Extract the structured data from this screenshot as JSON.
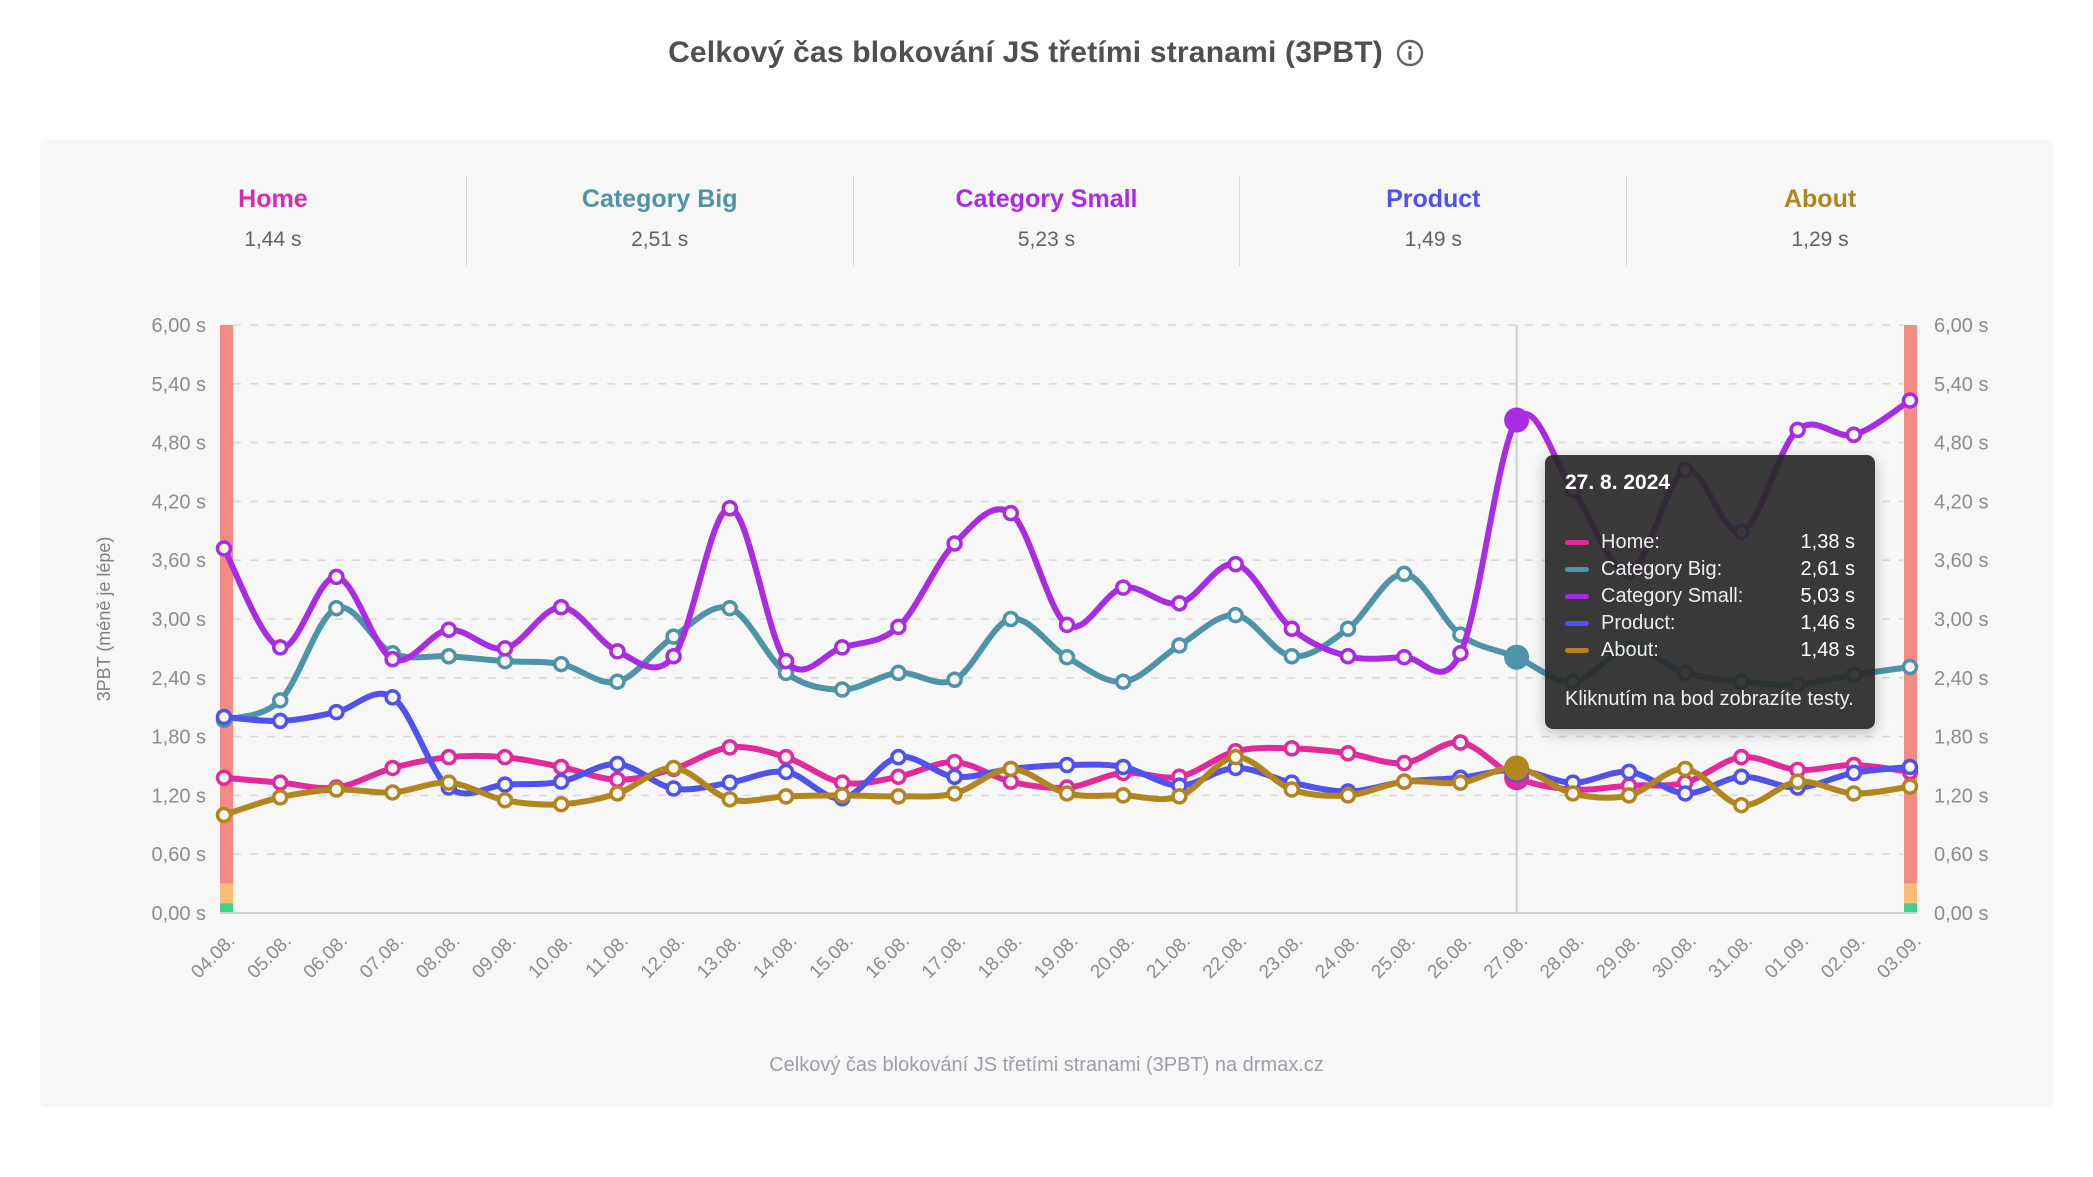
{
  "page": {
    "title": "Celkový čas blokování JS třetími stranami (3PBT)",
    "footer": "Celkový čas blokování JS třetími stranami (3PBT) na drmax.cz"
  },
  "tabs": [
    {
      "label": "Home",
      "value": "1,44 s",
      "color": "#d92bb0"
    },
    {
      "label": "Category Big",
      "value": "2,51 s",
      "color": "#4e93a7"
    },
    {
      "label": "Category Small",
      "value": "5,23 s",
      "color": "#a92ce2"
    },
    {
      "label": "Product",
      "value": "1,49 s",
      "color": "#4f52ec"
    },
    {
      "label": "About",
      "value": "1,29 s",
      "color": "#b1861f"
    }
  ],
  "tooltip": {
    "title": "27. 8. 2024",
    "rows": [
      {
        "label": "Home:",
        "value": "1,38 s",
        "color": "#e12a9c"
      },
      {
        "label": "Category Big:",
        "value": "2,61 s",
        "color": "#4e93a7"
      },
      {
        "label": "Category Small:",
        "value": "5,03 s",
        "color": "#a92ce2"
      },
      {
        "label": "Product:",
        "value": "1,46 s",
        "color": "#4f52ec"
      },
      {
        "label": "About:",
        "value": "1,48 s",
        "color": "#b1861f"
      }
    ],
    "note": "Kliknutím na bod zobrazíte testy."
  },
  "chart_data": {
    "type": "line",
    "title": "Celkový čas blokování JS třetími stranami (3PBT)",
    "ylabel": "3PBT (méně je lépe)",
    "ylim": [
      0,
      6
    ],
    "ytick_labels": [
      "0,00 s",
      "0,60 s",
      "1,20 s",
      "1,80 s",
      "2,40 s",
      "3,00 s",
      "3,60 s",
      "4,20 s",
      "4,80 s",
      "5,40 s",
      "6,00 s"
    ],
    "grid": "dashed horizontal",
    "legend_position": "top tabs",
    "highlight_index": 23,
    "highlight_date": "27. 8. 2024",
    "categories": [
      "04.08.",
      "05.08.",
      "06.08.",
      "07.08.",
      "08.08.",
      "09.08.",
      "10.08.",
      "11.08.",
      "12.08.",
      "13.08.",
      "14.08.",
      "15.08.",
      "16.08.",
      "17.08.",
      "18.08.",
      "19.08.",
      "20.08.",
      "21.08.",
      "22.08.",
      "23.08.",
      "24.08.",
      "25.08.",
      "26.08.",
      "27.08.",
      "28.08.",
      "29.08.",
      "30.08.",
      "31.08.",
      "01.09.",
      "02.09.",
      "03.09."
    ],
    "series": [
      {
        "name": "Home",
        "color": "#e12a9c",
        "values": [
          1.38,
          1.33,
          1.28,
          1.48,
          1.59,
          1.59,
          1.49,
          1.36,
          1.47,
          1.69,
          1.59,
          1.33,
          1.39,
          1.54,
          1.34,
          1.28,
          1.43,
          1.39,
          1.65,
          1.68,
          1.63,
          1.53,
          1.74,
          1.38,
          1.26,
          1.3,
          1.33,
          1.59,
          1.46,
          1.51,
          1.44
        ]
      },
      {
        "name": "Category Big",
        "color": "#4e93a7",
        "values": [
          1.97,
          2.17,
          3.11,
          2.65,
          2.62,
          2.57,
          2.54,
          2.36,
          2.82,
          3.11,
          2.45,
          2.28,
          2.45,
          2.38,
          3.0,
          2.61,
          2.36,
          2.73,
          3.04,
          2.62,
          2.9,
          3.46,
          2.84,
          2.61,
          2.36,
          2.7,
          2.45,
          2.36,
          2.33,
          2.43,
          2.51
        ]
      },
      {
        "name": "Category Small",
        "color": "#a92ce2",
        "values": [
          3.72,
          2.71,
          3.43,
          2.59,
          2.89,
          2.7,
          3.12,
          2.67,
          2.62,
          4.13,
          2.57,
          2.71,
          2.92,
          3.77,
          4.08,
          2.94,
          3.32,
          3.16,
          3.56,
          2.9,
          2.62,
          2.61,
          2.65,
          5.03,
          4.32,
          3.48,
          4.52,
          3.89,
          4.93,
          4.88,
          5.23
        ]
      },
      {
        "name": "Product",
        "color": "#4f52ec",
        "values": [
          2.0,
          1.96,
          2.05,
          2.2,
          1.28,
          1.31,
          1.34,
          1.52,
          1.27,
          1.33,
          1.44,
          1.17,
          1.59,
          1.39,
          1.47,
          1.51,
          1.49,
          1.3,
          1.48,
          1.33,
          1.24,
          1.34,
          1.38,
          1.46,
          1.33,
          1.44,
          1.22,
          1.39,
          1.28,
          1.43,
          1.49
        ]
      },
      {
        "name": "About",
        "color": "#b1861f",
        "values": [
          1.0,
          1.18,
          1.26,
          1.23,
          1.33,
          1.15,
          1.11,
          1.22,
          1.48,
          1.16,
          1.19,
          1.2,
          1.19,
          1.22,
          1.47,
          1.22,
          1.2,
          1.19,
          1.59,
          1.26,
          1.2,
          1.34,
          1.33,
          1.48,
          1.22,
          1.2,
          1.47,
          1.1,
          1.34,
          1.22,
          1.29
        ]
      }
    ],
    "threshold_bands": [
      {
        "from": 0.3,
        "to": 6.0,
        "color": "#f48b82",
        "meaning": "poor"
      },
      {
        "from": 0.1,
        "to": 0.3,
        "color": "#fbbd75",
        "meaning": "moderate"
      },
      {
        "from": 0.0,
        "to": 0.1,
        "color": "#3ed28e",
        "meaning": "good"
      }
    ]
  }
}
